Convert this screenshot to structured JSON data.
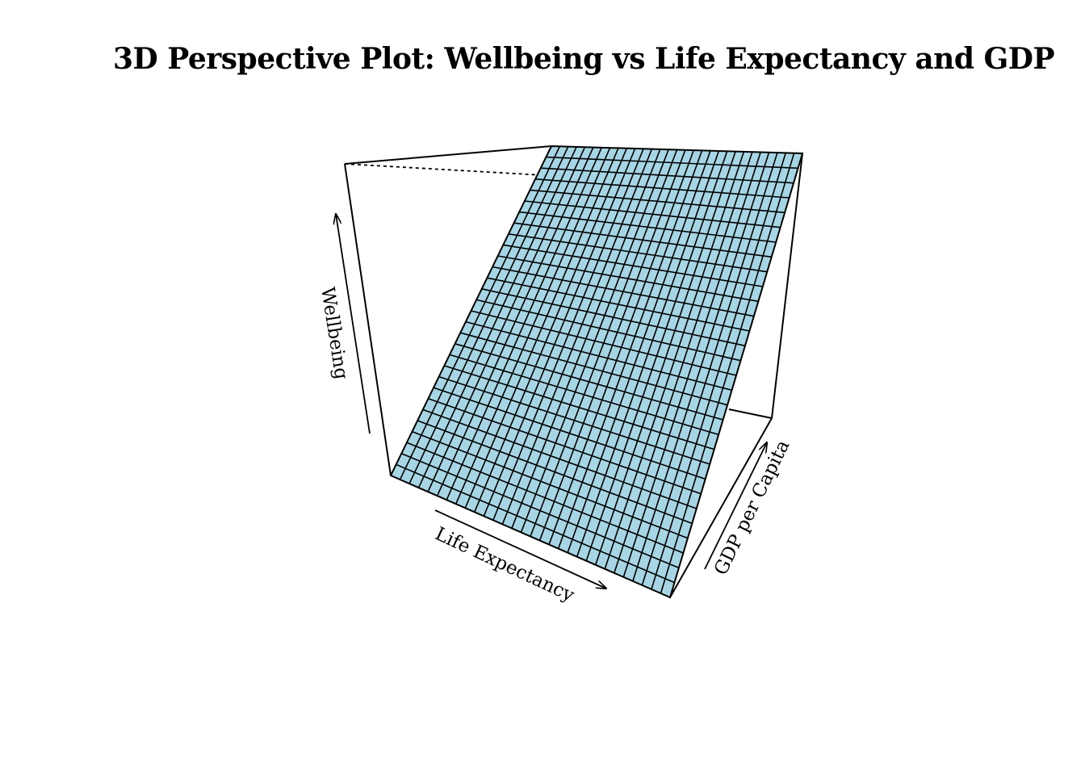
{
  "chart_data": {
    "type": "surface",
    "title": "3D Perspective Plot: Wellbeing vs Life Expectancy and GDP",
    "xlabel": "Life Expectancy",
    "ylabel": "GDP per Capita",
    "zlabel": "Wellbeing",
    "surface_color": "#a7d5e4",
    "grid_color": "#000000",
    "grid_lines_x": 30,
    "grid_lines_y": 30,
    "box": true,
    "ticks": false
  }
}
